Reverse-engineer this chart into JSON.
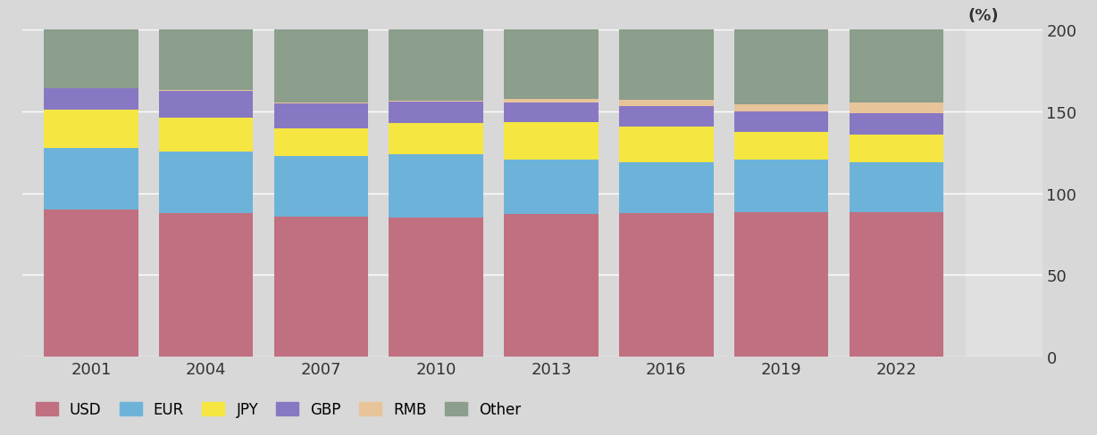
{
  "years": [
    2001,
    2004,
    2007,
    2010,
    2013,
    2016,
    2019,
    2022
  ],
  "USD": [
    89.9,
    88.0,
    85.6,
    84.9,
    87.0,
    87.6,
    88.3,
    88.5
  ],
  "EUR": [
    37.9,
    37.4,
    37.0,
    39.0,
    33.4,
    31.3,
    32.3,
    30.5
  ],
  "JPY": [
    23.5,
    20.8,
    17.2,
    19.0,
    23.1,
    21.6,
    16.8,
    16.7
  ],
  "GBP": [
    13.0,
    16.5,
    14.9,
    12.9,
    11.8,
    12.8,
    12.8,
    12.9
  ],
  "RMB": [
    0.0,
    0.1,
    0.5,
    0.9,
    2.2,
    4.0,
    4.3,
    7.0
  ],
  "Other": [
    35.7,
    37.2,
    44.8,
    43.3,
    42.5,
    42.7,
    45.5,
    44.4
  ],
  "colors": {
    "USD": "#c07080",
    "EUR": "#6db3d9",
    "JPY": "#f5e642",
    "GBP": "#8878c3",
    "RMB": "#e8c49a",
    "Other": "#8c9e8c"
  },
  "ylim": [
    0,
    200
  ],
  "yticks": [
    0,
    50,
    100,
    150,
    200
  ],
  "ylabel": "(%)",
  "bg_color": "#d8d8d8",
  "plot_bg_color": "#d8d8d8",
  "right_panel_color": "#e0e0e0",
  "grid_color": "#ffffff",
  "bar_width": 0.82,
  "categories": [
    "USD",
    "EUR",
    "JPY",
    "GBP",
    "RMB",
    "Other"
  ]
}
